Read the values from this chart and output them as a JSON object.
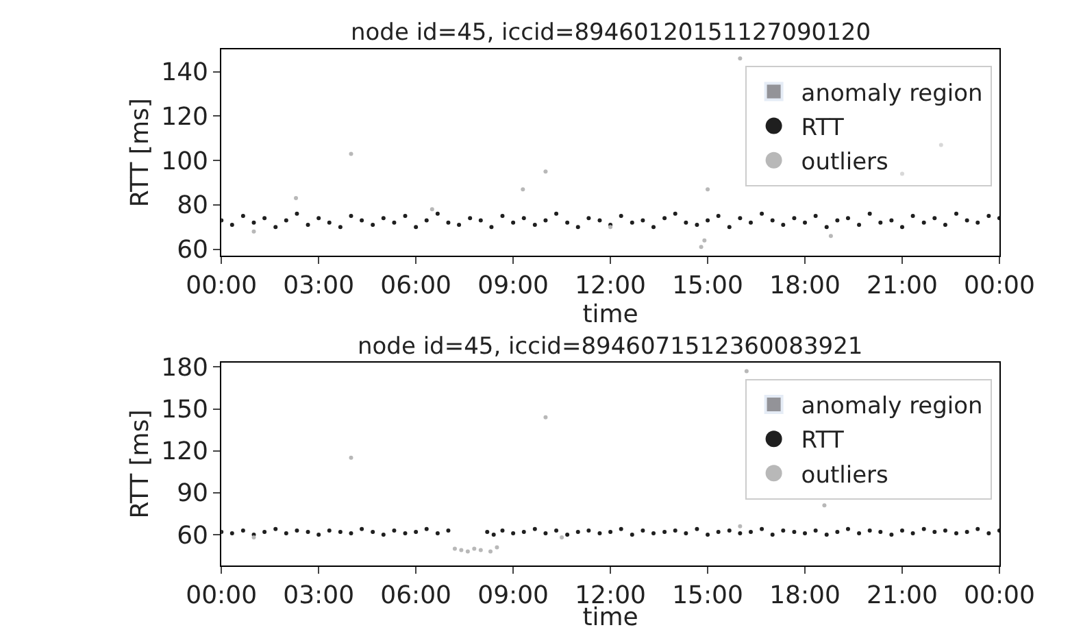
{
  "chart_data": [
    {
      "type": "scatter",
      "title": "node id=45, iccid=89460120151127090120",
      "xlabel": "time",
      "ylabel": "RTT [ms]",
      "xlim": [
        0,
        24
      ],
      "xticks": [
        {
          "value": 0,
          "label": "00:00"
        },
        {
          "value": 3,
          "label": "03:00"
        },
        {
          "value": 6,
          "label": "06:00"
        },
        {
          "value": 9,
          "label": "09:00"
        },
        {
          "value": 12,
          "label": "12:00"
        },
        {
          "value": 15,
          "label": "15:00"
        },
        {
          "value": 18,
          "label": "18:00"
        },
        {
          "value": 21,
          "label": "21:00"
        },
        {
          "value": 24,
          "label": "00:00"
        }
      ],
      "ylim": [
        57,
        150
      ],
      "yticks": [
        60,
        80,
        100,
        120,
        140
      ],
      "legend": "top right",
      "marker": "circle",
      "series": [
        {
          "name": "anomaly region",
          "type": "area",
          "color": "#939398",
          "x": [
            null
          ],
          "values": [
            null
          ]
        },
        {
          "name": "RTT",
          "color": "#1f1f1f",
          "x": [
            0,
            0.33,
            0.67,
            1,
            1.33,
            1.67,
            2,
            2.33,
            2.67,
            3,
            3.33,
            3.67,
            4,
            4.33,
            4.67,
            5,
            5.33,
            5.67,
            6,
            6.33,
            6.67,
            7,
            7.33,
            7.67,
            8,
            8.33,
            8.67,
            9,
            9.33,
            9.67,
            10,
            10.33,
            10.67,
            11,
            11.33,
            11.67,
            12,
            12.33,
            12.67,
            13,
            13.33,
            13.67,
            14,
            14.33,
            14.67,
            15,
            15.33,
            15.67,
            16,
            16.33,
            16.67,
            17,
            17.33,
            17.67,
            18,
            18.33,
            18.67,
            19,
            19.33,
            19.67,
            20,
            20.33,
            20.67,
            21,
            21.33,
            21.67,
            22,
            22.33,
            22.67,
            23,
            23.33,
            23.67,
            24
          ],
          "values": [
            73,
            71,
            75,
            72,
            74,
            70,
            73,
            76,
            71,
            74,
            72,
            70,
            75,
            73,
            71,
            74,
            72,
            75,
            70,
            73,
            76,
            72,
            71,
            74,
            73,
            70,
            75,
            72,
            74,
            71,
            73,
            76,
            72,
            70,
            74,
            73,
            71,
            75,
            72,
            73,
            70,
            74,
            76,
            72,
            71,
            73,
            75,
            70,
            74,
            72,
            76,
            73,
            71,
            74,
            72,
            75,
            70,
            73,
            74,
            71,
            76,
            72,
            73,
            70,
            75,
            72,
            74,
            71,
            76,
            73,
            72,
            75,
            74
          ]
        },
        {
          "name": "outliers",
          "color": "#b8b8b8",
          "x": [
            1.0,
            2.3,
            4.0,
            6.5,
            9.3,
            10.0,
            12.0,
            14.8,
            14.9,
            15.0,
            16.0,
            18.8,
            21.0,
            22.2
          ],
          "values": [
            68,
            83,
            103,
            78,
            87,
            95,
            70,
            61,
            64,
            87,
            146,
            66,
            94,
            107
          ]
        }
      ]
    },
    {
      "type": "scatter",
      "title": "node id=45, iccid=8946071512360083921",
      "xlabel": "time",
      "ylabel": "RTT [ms]",
      "xlim": [
        0,
        24
      ],
      "xticks": [
        {
          "value": 0,
          "label": "00:00"
        },
        {
          "value": 3,
          "label": "03:00"
        },
        {
          "value": 6,
          "label": "06:00"
        },
        {
          "value": 9,
          "label": "09:00"
        },
        {
          "value": 12,
          "label": "12:00"
        },
        {
          "value": 15,
          "label": "15:00"
        },
        {
          "value": 18,
          "label": "18:00"
        },
        {
          "value": 21,
          "label": "21:00"
        },
        {
          "value": 24,
          "label": "00:00"
        }
      ],
      "ylim": [
        38,
        183
      ],
      "yticks": [
        60,
        90,
        120,
        150,
        180
      ],
      "legend": "top right",
      "marker": "circle",
      "series": [
        {
          "name": "anomaly region",
          "type": "area",
          "color": "#939398",
          "x": [
            null
          ],
          "values": [
            null
          ]
        },
        {
          "name": "RTT",
          "color": "#1f1f1f",
          "x": [
            0,
            0.33,
            0.67,
            1,
            1.33,
            1.67,
            2,
            2.33,
            2.67,
            3,
            3.33,
            3.67,
            4,
            4.33,
            4.67,
            5,
            5.33,
            5.67,
            6,
            6.33,
            6.67,
            7,
            8.2,
            8.4,
            8.67,
            9,
            9.33,
            9.67,
            10,
            10.33,
            10.67,
            11,
            11.33,
            11.67,
            12,
            12.33,
            12.67,
            13,
            13.33,
            13.67,
            14,
            14.33,
            14.67,
            15,
            15.33,
            15.67,
            16,
            16.33,
            16.67,
            17,
            17.33,
            17.67,
            18,
            18.33,
            18.67,
            19,
            19.33,
            19.67,
            20,
            20.33,
            20.67,
            21,
            21.33,
            21.67,
            22,
            22.33,
            22.67,
            23,
            23.33,
            23.67,
            24
          ],
          "values": [
            62,
            61,
            63,
            60,
            62,
            64,
            61,
            63,
            62,
            60,
            63,
            62,
            61,
            64,
            62,
            60,
            63,
            61,
            62,
            64,
            61,
            63,
            62,
            60,
            63,
            61,
            62,
            64,
            61,
            63,
            60,
            62,
            63,
            61,
            62,
            64,
            60,
            63,
            61,
            62,
            63,
            61,
            64,
            60,
            62,
            63,
            61,
            62,
            64,
            60,
            63,
            62,
            61,
            63,
            60,
            62,
            64,
            61,
            63,
            62,
            60,
            63,
            61,
            64,
            62,
            63,
            61,
            62,
            64,
            61,
            63
          ]
        },
        {
          "name": "outliers",
          "color": "#b8b8b8",
          "x": [
            1.0,
            4.0,
            7.2,
            7.4,
            7.6,
            7.8,
            8.0,
            8.3,
            8.5,
            10.0,
            10.5,
            16.0,
            16.2,
            18.6
          ],
          "values": [
            58,
            115,
            50,
            49,
            48,
            50,
            49,
            48,
            51,
            144,
            58,
            66,
            177,
            81
          ]
        }
      ]
    }
  ]
}
